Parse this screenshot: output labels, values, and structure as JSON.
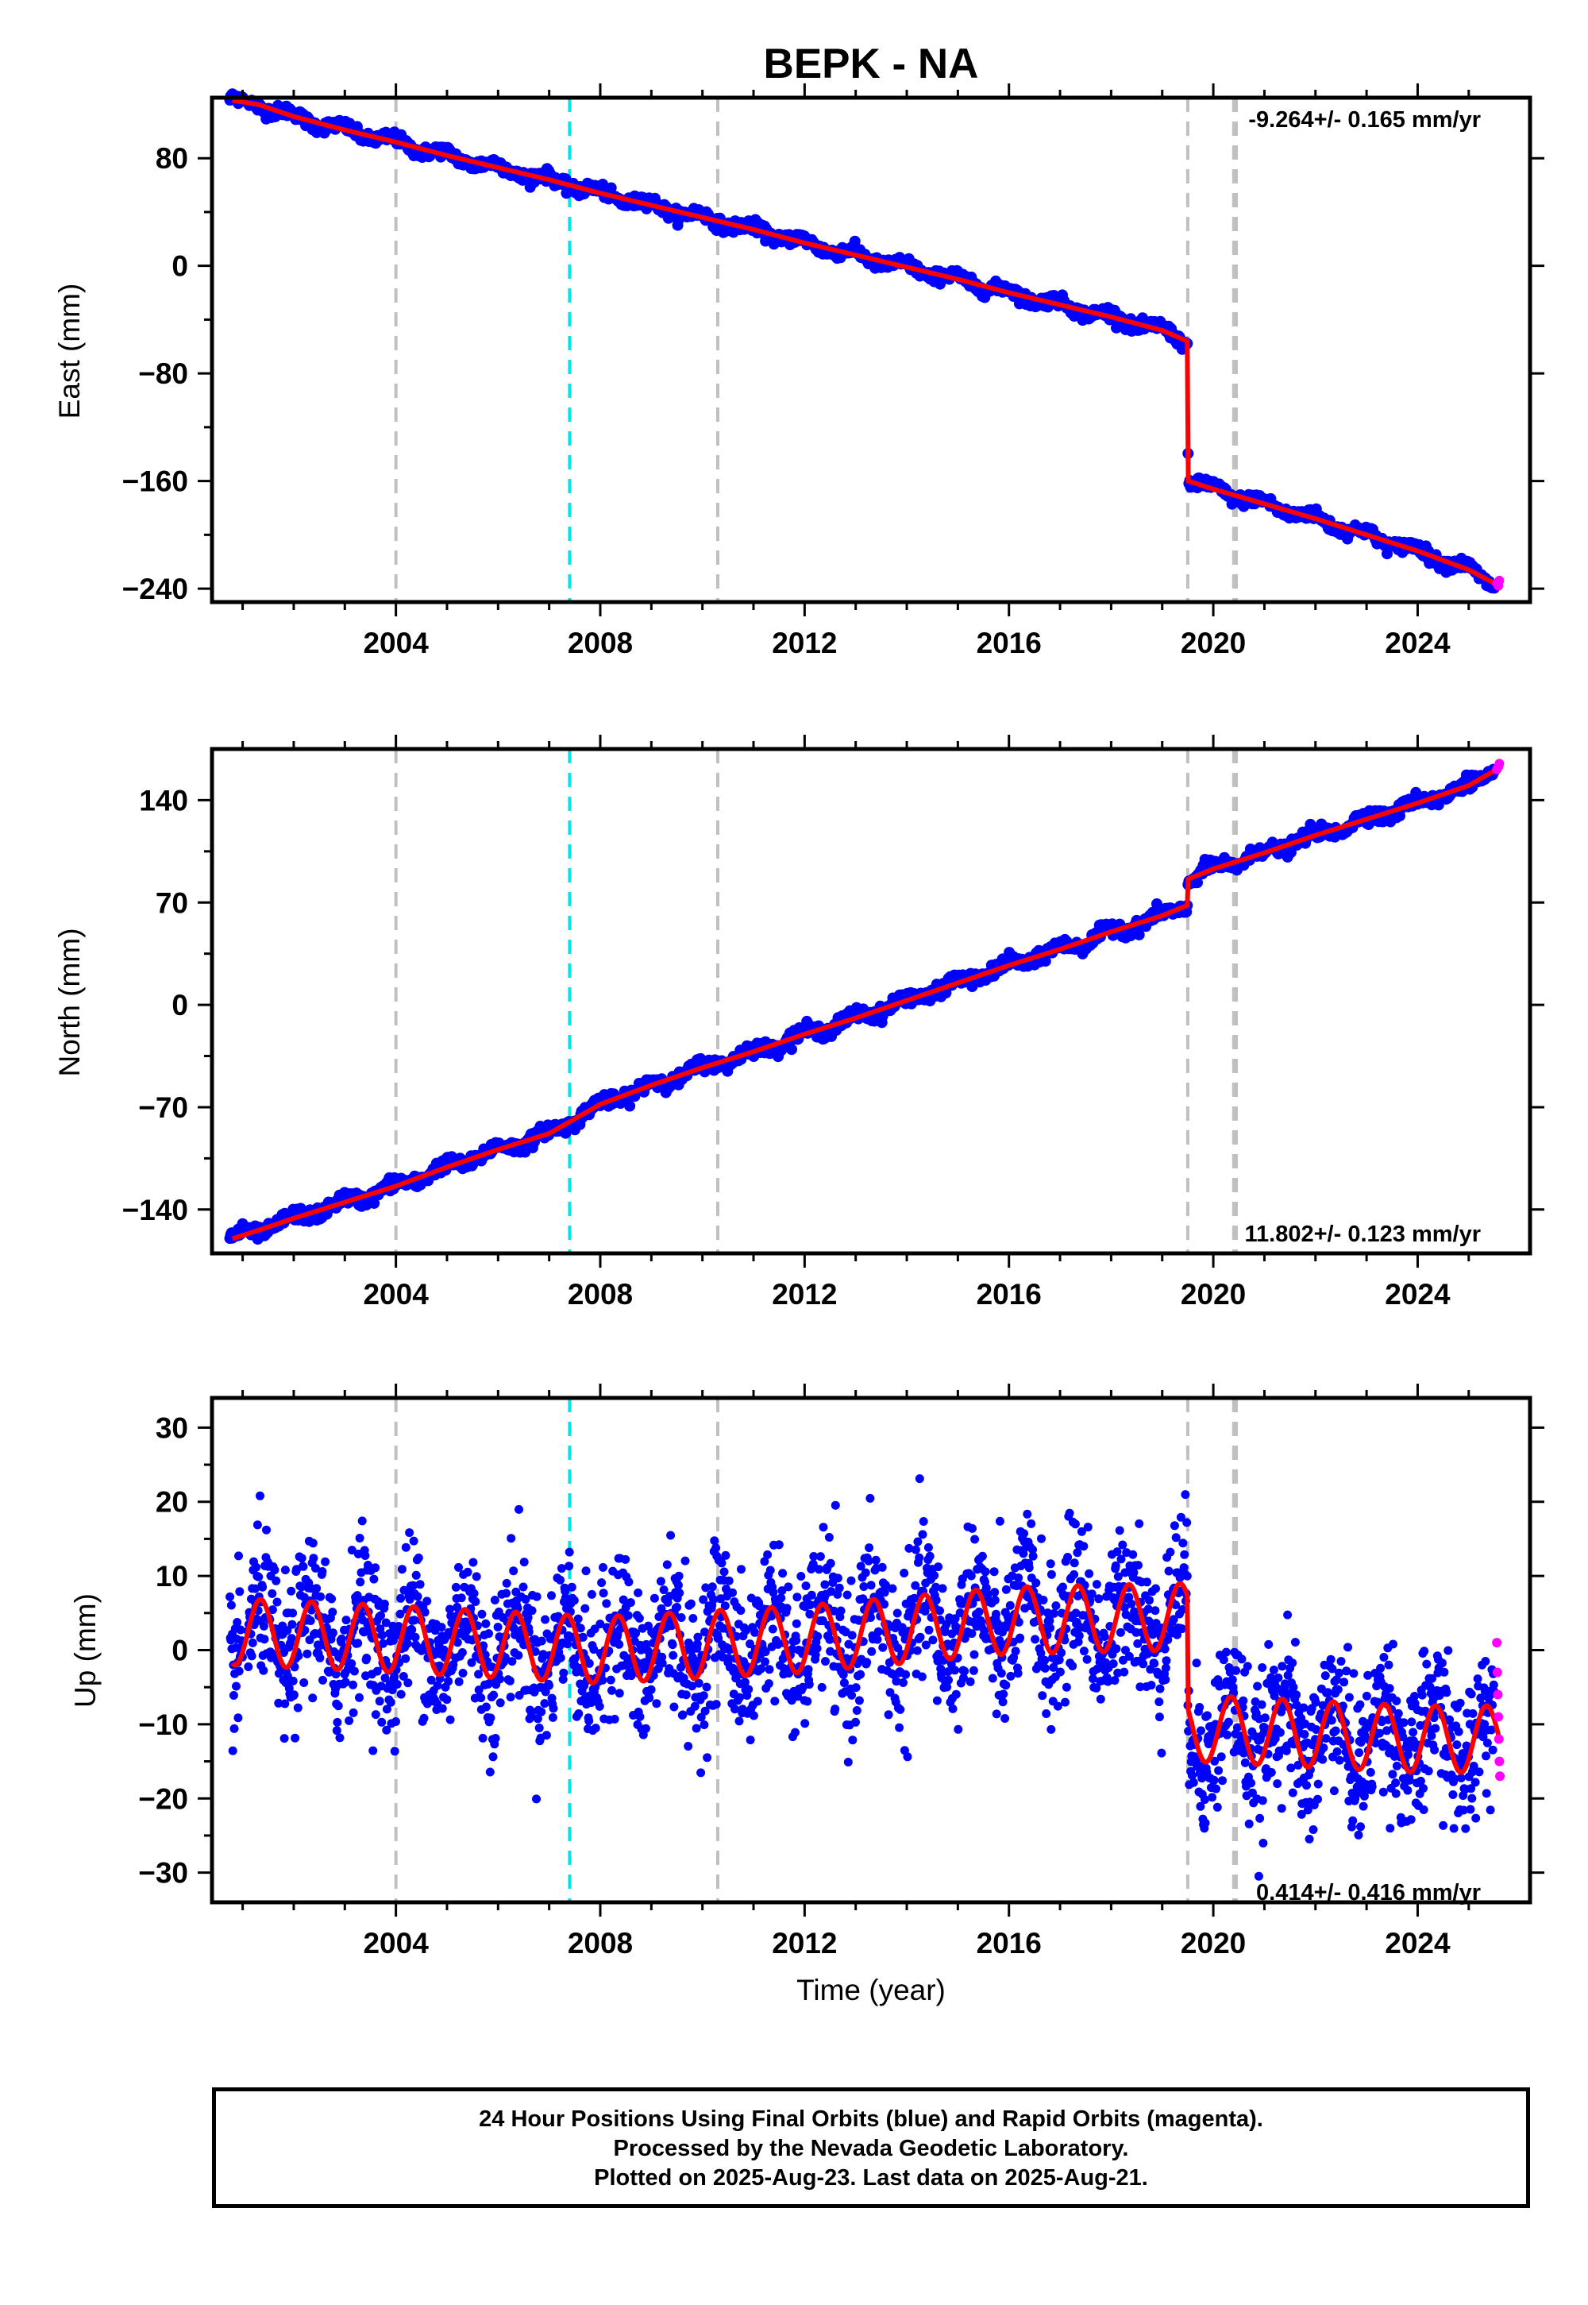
{
  "title": "BEPK - NA",
  "colors": {
    "final": "#0000ff",
    "rapid": "#ff00ff",
    "model": "#ff0000",
    "event_gray": "#c0c0c0",
    "event_cyan": "#00e5e5"
  },
  "footer": {
    "line1": "24 Hour Positions Using Final Orbits (blue) and Rapid Orbits (magenta).",
    "line2": "Processed by the Nevada Geodetic Laboratory.",
    "line3": "Plotted on 2025-Aug-23. Last data on 2025-Aug-21."
  },
  "chart_data": [
    {
      "type": "scatter",
      "ylabel": "East (mm)",
      "rate": "-9.264+/- 0.165 mm/yr",
      "rate_position": "top-right",
      "xlim": [
        2000.4,
        2026.2
      ],
      "ylim": [
        -250,
        125
      ],
      "xticks": [
        2004,
        2008,
        2012,
        2016,
        2020,
        2024
      ],
      "yticks": [
        80,
        0,
        -80,
        -160,
        -240
      ],
      "events_gray": [
        2004.0,
        2010.3,
        2019.5,
        2020.4,
        2020.45
      ],
      "events_cyan": [
        2007.4
      ],
      "steps": [
        {
          "x": 2019.5,
          "dy": -95
        }
      ],
      "model": {
        "x": [
          2000.8,
          2001.3,
          2002.0,
          2003.0,
          2004.0,
          2005.0,
          2006.0,
          2007.0,
          2008.0,
          2009.0,
          2010.0,
          2011.0,
          2012.0,
          2013.0,
          2014.0,
          2015.0,
          2016.0,
          2017.0,
          2018.0,
          2019.0,
          2019.49,
          2019.51,
          2020.0,
          2021.0,
          2022.0,
          2023.0,
          2024.0,
          2025.0,
          2025.6
        ],
        "y": [
          123,
          120,
          111,
          101,
          92,
          82,
          73,
          64,
          54,
          45,
          36,
          27,
          17,
          8,
          -1,
          -10,
          -20,
          -29,
          -38,
          -48,
          -56,
          -160,
          -166,
          -177,
          -188,
          -200,
          -212,
          -226,
          -238
        ]
      },
      "rapid": {
        "x": [
          2025.55,
          2025.58,
          2025.6
        ],
        "y": [
          -236,
          -238,
          -234
        ]
      }
    },
    {
      "type": "scatter",
      "ylabel": "North (mm)",
      "rate": "11.802+/- 0.123 mm/yr",
      "rate_position": "bottom-right",
      "xlim": [
        2000.4,
        2026.2
      ],
      "ylim": [
        -170,
        175
      ],
      "xticks": [
        2004,
        2008,
        2012,
        2016,
        2020,
        2024
      ],
      "yticks": [
        140,
        70,
        0,
        -70,
        -140
      ],
      "events_gray": [
        2004.0,
        2010.3,
        2019.5,
        2020.4,
        2020.45
      ],
      "events_cyan": [
        2007.4
      ],
      "steps": [
        {
          "x": 2019.5,
          "dy": 15
        },
        {
          "x": 2007.4,
          "dy": 6
        }
      ],
      "model": {
        "x": [
          2000.8,
          2001.5,
          2002.0,
          2003.0,
          2004.0,
          2005.0,
          2006.0,
          2007.0,
          2007.4,
          2008.0,
          2009.0,
          2010.0,
          2011.0,
          2012.0,
          2013.0,
          2014.0,
          2015.0,
          2016.0,
          2017.0,
          2018.0,
          2019.0,
          2019.49,
          2019.51,
          2020.0,
          2021.0,
          2022.0,
          2023.0,
          2024.0,
          2025.0,
          2025.6
        ],
        "y": [
          -160,
          -152,
          -146,
          -135,
          -124,
          -111,
          -99,
          -88,
          -80,
          -68,
          -55,
          -43,
          -32,
          -20,
          -9,
          3,
          15,
          27,
          38,
          50,
          61,
          68,
          86,
          93,
          104,
          116,
          127,
          138,
          150,
          162
        ]
      },
      "rapid": {
        "x": [
          2025.55,
          2025.58,
          2025.6
        ],
        "y": [
          161,
          163,
          165
        ]
      }
    },
    {
      "type": "scatter",
      "ylabel": "Up (mm)",
      "xlabel": "Time (year)",
      "rate": "0.414+/- 0.416 mm/yr",
      "rate_position": "bottom-right",
      "xlim": [
        2000.4,
        2026.2
      ],
      "ylim": [
        -34,
        34
      ],
      "xticks": [
        2004,
        2008,
        2012,
        2016,
        2020,
        2024
      ],
      "yticks": [
        30,
        20,
        10,
        0,
        -10,
        -20,
        -30
      ],
      "events_gray": [
        2004.0,
        2010.3,
        2019.5,
        2020.4,
        2020.45
      ],
      "events_cyan": [
        2007.4
      ],
      "steps": [
        {
          "x": 2019.5,
          "dy": -14
        }
      ],
      "seasonal_amplitude": 4.5,
      "noise_sd": 5,
      "model_trend": {
        "x": [
          2000.8,
          2004.0,
          2008.0,
          2012.0,
          2016.0,
          2019.49,
          2019.51,
          2021.0,
          2024.0,
          2025.6
        ],
        "y": [
          2.5,
          1.5,
          0.0,
          1.5,
          4.0,
          4.5,
          -10.5,
          -11.0,
          -12.0,
          -12.0
        ]
      },
      "rapid": {
        "x": [
          2025.55,
          2025.56,
          2025.57,
          2025.58,
          2025.59,
          2025.6,
          2025.61
        ],
        "y": [
          1,
          -3,
          -6,
          -9,
          -12,
          -15,
          -17
        ]
      }
    }
  ]
}
